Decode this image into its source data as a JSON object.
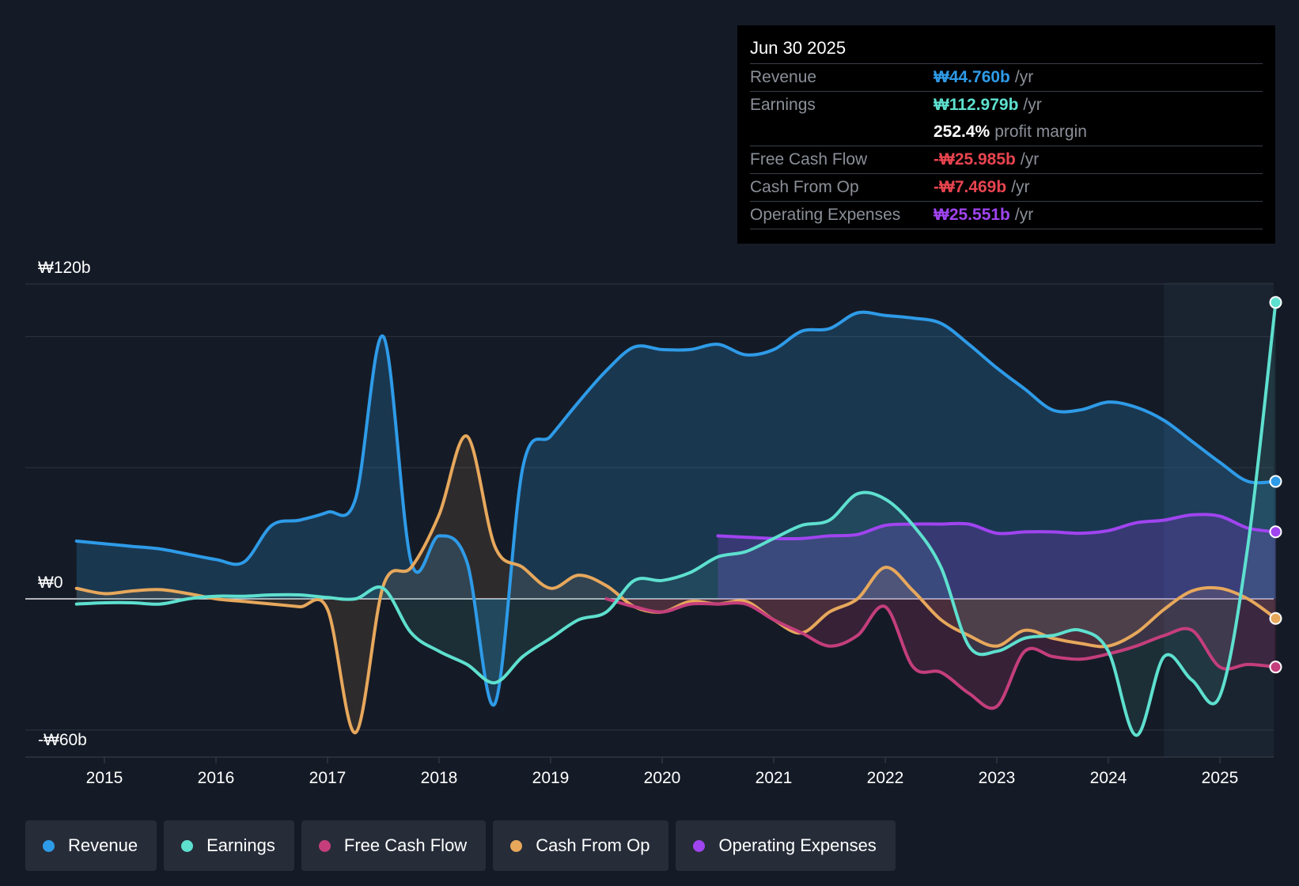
{
  "tooltip": {
    "date": "Jun 30 2025",
    "rows": [
      {
        "label": "Revenue",
        "value": "₩44.760b",
        "unit": "/yr",
        "color": "#2e9be8"
      },
      {
        "label": "Earnings",
        "value": "₩112.979b",
        "unit": "/yr",
        "color": "#5ee0cf"
      },
      {
        "label": "",
        "value": "252.4%",
        "unit": "profit margin",
        "color": "#ffffff"
      },
      {
        "label": "Free Cash Flow",
        "value": "-₩25.985b",
        "unit": "/yr",
        "color": "#e8444f"
      },
      {
        "label": "Cash From Op",
        "value": "-₩7.469b",
        "unit": "/yr",
        "color": "#e8444f"
      },
      {
        "label": "Operating Expenses",
        "value": "₩25.551b",
        "unit": "/yr",
        "color": "#a044f0"
      }
    ]
  },
  "legend": [
    {
      "label": "Revenue",
      "color": "#2e9be8"
    },
    {
      "label": "Earnings",
      "color": "#5ee0cf"
    },
    {
      "label": "Free Cash Flow",
      "color": "#c43e7c"
    },
    {
      "label": "Cash From Op",
      "color": "#e7a85c"
    },
    {
      "label": "Operating Expenses",
      "color": "#a044f0"
    }
  ],
  "chart_data": {
    "type": "area",
    "title": "",
    "ylabel_ticks": [
      "₩120b",
      "₩0",
      "-₩60b"
    ],
    "y_tick_values": [
      120,
      0,
      -60
    ],
    "ylim": [
      -60,
      120
    ],
    "xlim": [
      2014.5,
      2025.5
    ],
    "x_ticks": [
      "2015",
      "2016",
      "2017",
      "2018",
      "2019",
      "2020",
      "2021",
      "2022",
      "2023",
      "2024",
      "2025"
    ],
    "x_tick_values": [
      2015,
      2016,
      2017,
      2018,
      2019,
      2020,
      2021,
      2022,
      2023,
      2024,
      2025
    ],
    "forecast_start": 2024.5,
    "series": [
      {
        "name": "Revenue",
        "color": "#2e9be8",
        "x": [
          2014.75,
          2015.0,
          2015.25,
          2015.5,
          2015.75,
          2016.0,
          2016.25,
          2016.5,
          2016.75,
          2017.0,
          2017.25,
          2017.5,
          2017.75,
          2018.0,
          2018.25,
          2018.5,
          2018.75,
          2019.0,
          2019.25,
          2019.5,
          2019.75,
          2020.0,
          2020.25,
          2020.5,
          2020.75,
          2021.0,
          2021.25,
          2021.5,
          2021.75,
          2022.0,
          2022.25,
          2022.5,
          2022.75,
          2023.0,
          2023.25,
          2023.5,
          2023.75,
          2024.0,
          2024.25,
          2024.5,
          2024.75,
          2025.0,
          2025.25,
          2025.5
        ],
        "values": [
          22,
          21,
          20,
          19,
          17,
          15,
          14,
          28,
          30,
          33,
          38,
          100,
          14,
          24,
          14,
          -40,
          50,
          62,
          75,
          87,
          96,
          95,
          95,
          97,
          93,
          95,
          102,
          103,
          109,
          108,
          107,
          105,
          97,
          88,
          80,
          72,
          72,
          75,
          73,
          68,
          60,
          52,
          44.76,
          44.76
        ]
      },
      {
        "name": "Earnings",
        "color": "#5ee0cf",
        "x": [
          2014.75,
          2015.0,
          2015.25,
          2015.5,
          2015.75,
          2016.0,
          2016.25,
          2016.5,
          2016.75,
          2017.0,
          2017.25,
          2017.5,
          2017.75,
          2018.0,
          2018.25,
          2018.5,
          2018.75,
          2019.0,
          2019.25,
          2019.5,
          2019.75,
          2020.0,
          2020.25,
          2020.5,
          2020.75,
          2021.0,
          2021.25,
          2021.5,
          2021.75,
          2022.0,
          2022.25,
          2022.5,
          2022.75,
          2023.0,
          2023.25,
          2023.5,
          2023.75,
          2024.0,
          2024.25,
          2024.5,
          2024.75,
          2025.0,
          2025.25,
          2025.5
        ],
        "values": [
          -2,
          -1.5,
          -1.5,
          -2,
          0,
          1,
          1,
          1.5,
          1.5,
          0.5,
          0,
          4,
          -13,
          -20,
          -25,
          -32,
          -22,
          -15,
          -8,
          -5,
          7,
          7,
          10,
          16,
          18,
          23,
          28,
          30,
          40,
          38,
          28,
          12,
          -18,
          -20,
          -15,
          -14,
          -12,
          -20,
          -52,
          -22,
          -31,
          -37,
          20,
          112.979
        ]
      },
      {
        "name": "Free Cash Flow",
        "color": "#c43e7c",
        "x": [
          2019.5,
          2019.75,
          2020.0,
          2020.25,
          2020.5,
          2020.75,
          2021.0,
          2021.25,
          2021.5,
          2021.75,
          2022.0,
          2022.25,
          2022.5,
          2022.75,
          2023.0,
          2023.25,
          2023.5,
          2023.75,
          2024.0,
          2024.25,
          2024.5,
          2024.75,
          2025.0,
          2025.25,
          2025.5
        ],
        "values": [
          0,
          -3,
          -5,
          -2,
          -2,
          -2,
          -8,
          -13,
          -18,
          -14,
          -3,
          -26,
          -28,
          -36,
          -41,
          -20,
          -22,
          -23,
          -21,
          -18,
          -14,
          -12,
          -26,
          -25,
          -25.985
        ]
      },
      {
        "name": "Cash From Op",
        "color": "#e7a85c",
        "x": [
          2014.75,
          2015.0,
          2015.25,
          2015.5,
          2015.75,
          2016.0,
          2016.25,
          2016.5,
          2016.75,
          2017.0,
          2017.25,
          2017.5,
          2017.75,
          2018.0,
          2018.25,
          2018.5,
          2018.75,
          2019.0,
          2019.25,
          2019.5,
          2019.75,
          2020.0,
          2020.25,
          2020.5,
          2020.75,
          2021.0,
          2021.25,
          2021.5,
          2021.75,
          2022.0,
          2022.25,
          2022.5,
          2022.75,
          2023.0,
          2023.25,
          2023.5,
          2023.75,
          2024.0,
          2024.25,
          2024.5,
          2024.75,
          2025.0,
          2025.25,
          2025.5
        ],
        "values": [
          4,
          2,
          3,
          3.5,
          2,
          0,
          -1,
          -2,
          -3,
          -4,
          -51,
          5,
          12,
          32,
          62,
          20,
          12,
          4,
          9,
          5,
          -3,
          -5,
          -1,
          -2,
          -1,
          -8,
          -13,
          -5,
          0,
          12,
          3,
          -8,
          -14,
          -18,
          -12,
          -15,
          -17,
          -18,
          -13,
          -4,
          3,
          4,
          0,
          -7.469
        ]
      },
      {
        "name": "Operating Expenses",
        "color": "#a044f0",
        "x": [
          2020.5,
          2020.75,
          2021.0,
          2021.25,
          2021.5,
          2021.75,
          2022.0,
          2022.25,
          2022.5,
          2022.75,
          2023.0,
          2023.25,
          2023.5,
          2023.75,
          2024.0,
          2024.25,
          2024.5,
          2024.75,
          2025.0,
          2025.25,
          2025.5
        ],
        "values": [
          24,
          23.5,
          23,
          23,
          24,
          24.5,
          28,
          28.5,
          28.5,
          28.5,
          25,
          25.5,
          25.5,
          25,
          26,
          29,
          30,
          32,
          31.5,
          27,
          25.551
        ]
      }
    ]
  }
}
